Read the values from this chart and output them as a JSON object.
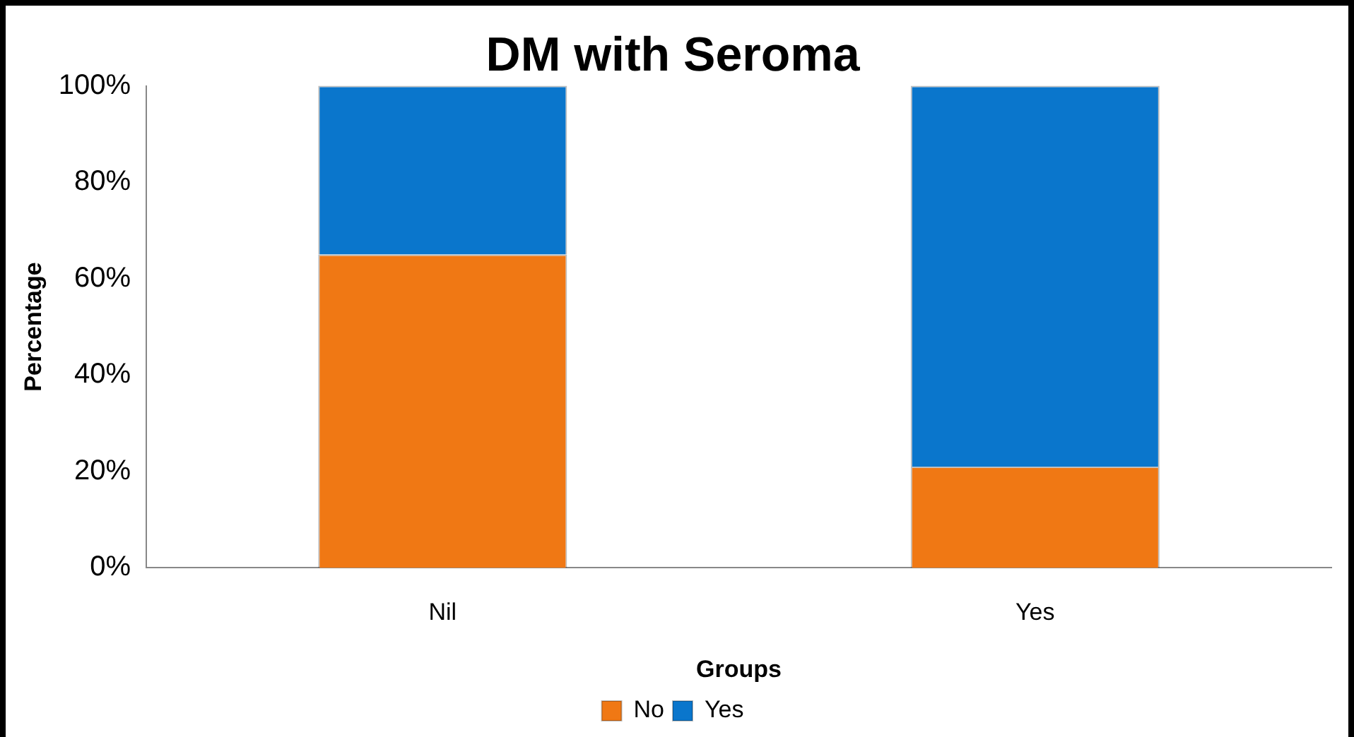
{
  "chart_data": {
    "type": "bar",
    "title": "DM with Seroma",
    "xlabel": "Groups",
    "ylabel": "Percentage",
    "categories": [
      "Nil",
      "Yes"
    ],
    "series": [
      {
        "name": "No",
        "color": "#f07814",
        "values": [
          65,
          21
        ]
      },
      {
        "name": "Yes",
        "color": "#0a76cc",
        "values": [
          35,
          79
        ]
      }
    ],
    "stacked": true,
    "ylim": [
      0,
      100
    ],
    "yticks": [
      {
        "value": 0,
        "label": "0%"
      },
      {
        "value": 20,
        "label": "20%"
      },
      {
        "value": 40,
        "label": "40%"
      },
      {
        "value": 60,
        "label": "60%"
      },
      {
        "value": 80,
        "label": "80%"
      },
      {
        "value": 100,
        "label": "100%"
      }
    ],
    "legend": "bottom"
  }
}
